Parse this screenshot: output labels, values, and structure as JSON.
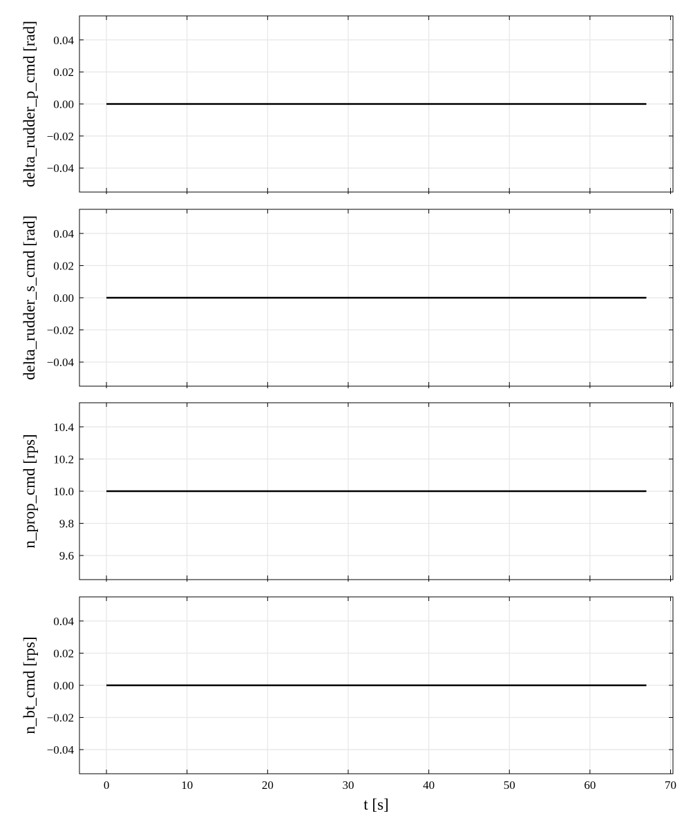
{
  "chart_data": [
    {
      "type": "line",
      "ylabel": "delta_rudder_p_cmd [rad]",
      "xlabel": "",
      "ylim": [
        -0.055,
        0.055
      ],
      "xlim": [
        -3.35,
        70.3
      ],
      "yticks": [
        "0.04",
        "0.02",
        "0.00",
        "−0.02",
        "−0.04"
      ],
      "ytick_values": [
        0.04,
        0.02,
        0.0,
        -0.02,
        -0.04
      ],
      "xticks": [
        0,
        10,
        20,
        30,
        40,
        50,
        60,
        70
      ],
      "show_xtick_labels": false,
      "grid": true,
      "series": [
        {
          "color": "#000000",
          "x": [
            0,
            67
          ],
          "y": [
            0.0,
            0.0
          ]
        }
      ]
    },
    {
      "type": "line",
      "ylabel": "delta_rudder_s_cmd [rad]",
      "xlabel": "",
      "ylim": [
        -0.055,
        0.055
      ],
      "xlim": [
        -3.35,
        70.3
      ],
      "yticks": [
        "0.04",
        "0.02",
        "0.00",
        "−0.02",
        "−0.04"
      ],
      "ytick_values": [
        0.04,
        0.02,
        0.0,
        -0.02,
        -0.04
      ],
      "xticks": [
        0,
        10,
        20,
        30,
        40,
        50,
        60,
        70
      ],
      "show_xtick_labels": false,
      "grid": true,
      "series": [
        {
          "color": "#000000",
          "x": [
            0,
            67
          ],
          "y": [
            0.0,
            0.0
          ]
        }
      ]
    },
    {
      "type": "line",
      "ylabel": "n_prop_cmd [rps]",
      "xlabel": "",
      "ylim": [
        9.45,
        10.55
      ],
      "xlim": [
        -3.35,
        70.3
      ],
      "yticks": [
        "10.4",
        "10.2",
        "10.0",
        "9.8",
        "9.6"
      ],
      "ytick_values": [
        10.4,
        10.2,
        10.0,
        9.8,
        9.6
      ],
      "xticks": [
        0,
        10,
        20,
        30,
        40,
        50,
        60,
        70
      ],
      "show_xtick_labels": false,
      "grid": true,
      "series": [
        {
          "color": "#000000",
          "x": [
            0,
            67
          ],
          "y": [
            10.0,
            10.0
          ]
        }
      ]
    },
    {
      "type": "line",
      "ylabel": "n_bt_cmd [rps]",
      "xlabel": "t [s]",
      "ylim": [
        -0.055,
        0.055
      ],
      "xlim": [
        -3.35,
        70.3
      ],
      "yticks": [
        "0.04",
        "0.02",
        "0.00",
        "−0.02",
        "−0.04"
      ],
      "ytick_values": [
        0.04,
        0.02,
        0.0,
        -0.02,
        -0.04
      ],
      "xticks": [
        0,
        10,
        20,
        30,
        40,
        50,
        60,
        70
      ],
      "xtick_labels": [
        "0",
        "10",
        "20",
        "30",
        "40",
        "50",
        "60",
        "70"
      ],
      "show_xtick_labels": true,
      "grid": true,
      "series": [
        {
          "color": "#000000",
          "x": [
            0,
            67
          ],
          "y": [
            0.0,
            0.0
          ]
        }
      ]
    }
  ]
}
